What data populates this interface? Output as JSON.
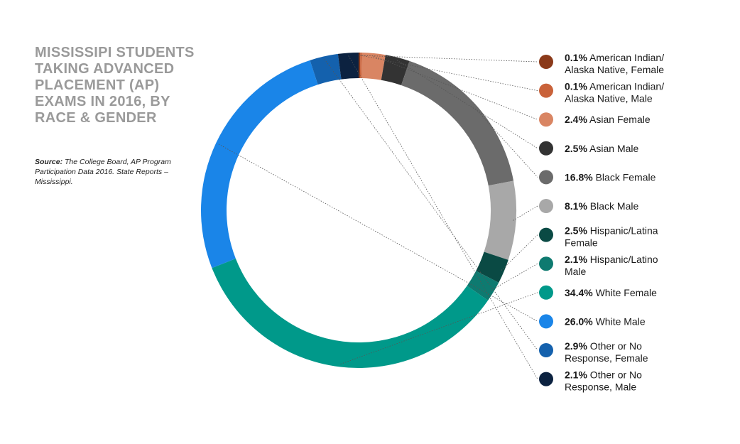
{
  "title": "MISSISSIPI STUDENTS\nTAKING ADVANCED\nPLACEMENT (AP)\nEXAMS IN 2016, BY\nRACE & GENDER",
  "source": {
    "label": "Source:",
    "text": "The College Board, AP Program Participation Data 2016. State Reports – Mississippi."
  },
  "chart_data": {
    "type": "pie",
    "donut": true,
    "slices": [
      {
        "pct": "0.1%",
        "label": "American Indian/",
        "label2": "Alaska Native, Female",
        "value": 0.1,
        "color": "#8b3a1a"
      },
      {
        "pct": "0.1%",
        "label": "American Indian/",
        "label2": "Alaska Native, Male",
        "value": 0.1,
        "color": "#c9623a"
      },
      {
        "pct": "2.4%",
        "label": "Asian Female",
        "label2": "",
        "value": 2.4,
        "color": "#d98563"
      },
      {
        "pct": "2.5%",
        "label": "Asian Male",
        "label2": "",
        "value": 2.5,
        "color": "#333333"
      },
      {
        "pct": "16.8%",
        "label": "Black Female",
        "label2": "",
        "value": 16.8,
        "color": "#6b6b6b"
      },
      {
        "pct": "8.1%",
        "label": "Black Male",
        "label2": "",
        "value": 8.1,
        "color": "#a8a8a8"
      },
      {
        "pct": "2.5%",
        "label": "Hispanic/Latina",
        "label2": "Female",
        "value": 2.5,
        "color": "#0a4a44"
      },
      {
        "pct": "2.1%",
        "label": "Hispanic/Latino",
        "label2": "Male",
        "value": 2.1,
        "color": "#0e7a70"
      },
      {
        "pct": "34.4%",
        "label": "White Female",
        "label2": "",
        "value": 34.4,
        "color": "#00998a"
      },
      {
        "pct": "26.0%",
        "label": "White Male",
        "label2": "",
        "value": 26.0,
        "color": "#1a85e8"
      },
      {
        "pct": "2.9%",
        "label": "Other or No",
        "label2": "Response, Female",
        "value": 2.9,
        "color": "#1461ad"
      },
      {
        "pct": "2.1%",
        "label": "Other or No",
        "label2": "Response, Male",
        "value": 2.1,
        "color": "#0c2240"
      }
    ]
  }
}
